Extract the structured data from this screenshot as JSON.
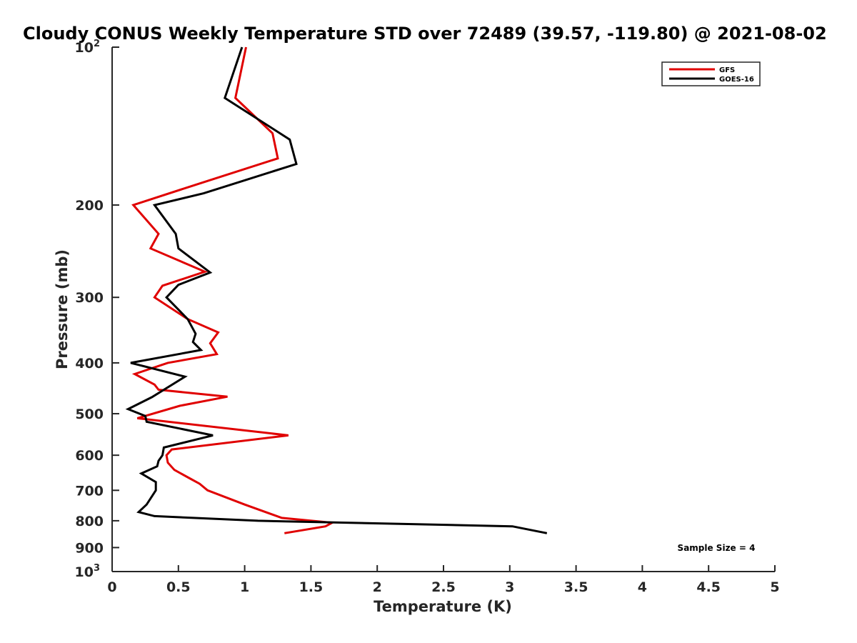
{
  "chart_data": {
    "type": "line",
    "title": "Cloudy CONUS Weekly Temperature STD over 72489 (39.57, -119.80) @ 2021-08-02",
    "xlabel": "Temperature (K)",
    "ylabel": "Pressure (mb)",
    "xlim": [
      0,
      5
    ],
    "ylim": [
      100,
      1000
    ],
    "y_scale": "log",
    "y_reversed": true,
    "grid": false,
    "legend_position": "top-right",
    "x_ticks": [
      0,
      0.5,
      1,
      1.5,
      2,
      2.5,
      3,
      3.5,
      4,
      4.5,
      5
    ],
    "x_tick_labels": [
      "0",
      "0.5",
      "1",
      "1.5",
      "2",
      "2.5",
      "3",
      "3.5",
      "4",
      "4.5",
      "5"
    ],
    "y_ticks": [
      100,
      200,
      300,
      400,
      500,
      600,
      700,
      800,
      900,
      1000
    ],
    "y_tick_labels": [
      {
        "base": "10",
        "sup": "2"
      },
      {
        "base": "200",
        "sup": ""
      },
      {
        "base": "300",
        "sup": ""
      },
      {
        "base": "400",
        "sup": ""
      },
      {
        "base": "500",
        "sup": ""
      },
      {
        "base": "600",
        "sup": ""
      },
      {
        "base": "700",
        "sup": ""
      },
      {
        "base": "800",
        "sup": ""
      },
      {
        "base": "900",
        "sup": ""
      },
      {
        "base": "10",
        "sup": "3"
      }
    ],
    "series": [
      {
        "name": "GFS",
        "color": "#e00000",
        "points": [
          [
            1.01,
            100
          ],
          [
            0.93,
            125
          ],
          [
            1.21,
            146
          ],
          [
            1.25,
            163
          ],
          [
            0.6,
            184
          ],
          [
            0.16,
            200
          ],
          [
            0.35,
            227
          ],
          [
            0.29,
            242
          ],
          [
            0.7,
            268
          ],
          [
            0.38,
            285
          ],
          [
            0.32,
            300
          ],
          [
            0.57,
            330
          ],
          [
            0.8,
            350
          ],
          [
            0.74,
            367
          ],
          [
            0.79,
            385
          ],
          [
            0.42,
            400
          ],
          [
            0.17,
            420
          ],
          [
            0.32,
            440
          ],
          [
            0.35,
            450
          ],
          [
            0.87,
            464
          ],
          [
            0.51,
            483
          ],
          [
            0.19,
            510
          ],
          [
            1.33,
            550
          ],
          [
            0.45,
            585
          ],
          [
            0.41,
            600
          ],
          [
            0.42,
            620
          ],
          [
            0.47,
            640
          ],
          [
            0.59,
            665
          ],
          [
            0.66,
            680
          ],
          [
            0.72,
            700
          ],
          [
            1.0,
            745
          ],
          [
            1.28,
            790
          ],
          [
            1.66,
            807
          ],
          [
            1.61,
            820
          ],
          [
            1.3,
            845
          ]
        ]
      },
      {
        "name": "GOES-16",
        "color": "#000000",
        "points": [
          [
            0.98,
            100
          ],
          [
            0.85,
            125
          ],
          [
            1.34,
            150
          ],
          [
            1.39,
            167
          ],
          [
            0.69,
            190
          ],
          [
            0.32,
            200
          ],
          [
            0.48,
            227
          ],
          [
            0.5,
            242
          ],
          [
            0.74,
            269
          ],
          [
            0.5,
            284
          ],
          [
            0.41,
            300
          ],
          [
            0.57,
            330
          ],
          [
            0.63,
            352
          ],
          [
            0.61,
            365
          ],
          [
            0.67,
            378
          ],
          [
            0.14,
            400
          ],
          [
            0.55,
            425
          ],
          [
            0.3,
            465
          ],
          [
            0.12,
            490
          ],
          [
            0.25,
            505
          ],
          [
            0.26,
            518
          ],
          [
            0.76,
            550
          ],
          [
            0.39,
            580
          ],
          [
            0.38,
            600
          ],
          [
            0.35,
            615
          ],
          [
            0.34,
            630
          ],
          [
            0.22,
            650
          ],
          [
            0.33,
            675
          ],
          [
            0.33,
            700
          ],
          [
            0.26,
            745
          ],
          [
            0.2,
            770
          ],
          [
            0.32,
            784
          ],
          [
            1.1,
            800
          ],
          [
            3.02,
            820
          ],
          [
            3.28,
            845
          ]
        ]
      }
    ],
    "annotation": "Sample Size = 4"
  }
}
